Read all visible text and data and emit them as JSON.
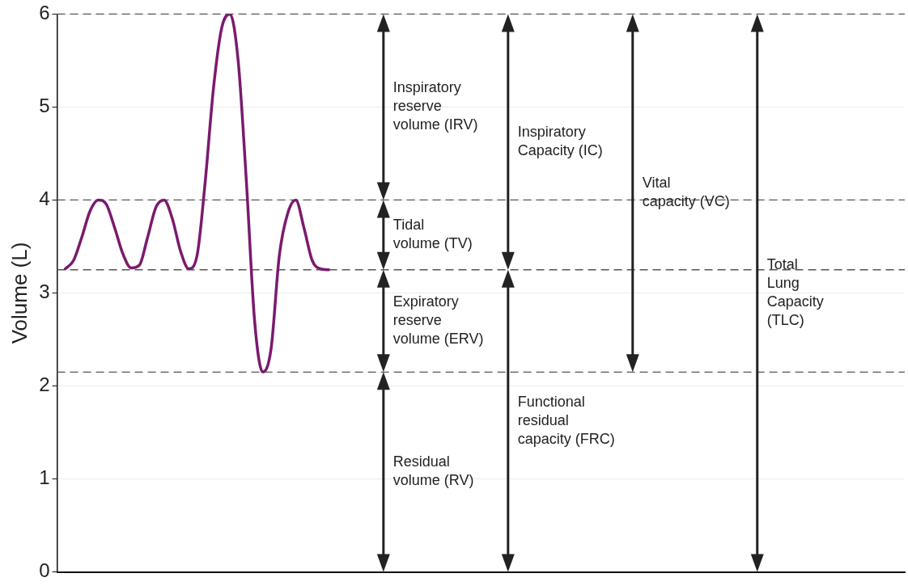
{
  "chart_data": {
    "type": "line",
    "ylabel": "Volume (L)",
    "categories": [
      null,
      null,
      null,
      null,
      null,
      null,
      null,
      null,
      null,
      null,
      null,
      null,
      null,
      null,
      null,
      null,
      null,
      null,
      null,
      null,
      null,
      null,
      null,
      null,
      null,
      null,
      null,
      null,
      null,
      null,
      null,
      null,
      null,
      null,
      null,
      null,
      null,
      null,
      null,
      null,
      null,
      null,
      null,
      null,
      null,
      null,
      null,
      null,
      null,
      null,
      null,
      null,
      null,
      null,
      null,
      null,
      null,
      null,
      null,
      null,
      null,
      null,
      null,
      null,
      null,
      null,
      null,
      null,
      null,
      null,
      null,
      null,
      null,
      null,
      null,
      null,
      null,
      null,
      null,
      null,
      null,
      null,
      null,
      null,
      null,
      null,
      null,
      null,
      null,
      null,
      null,
      null,
      null,
      null,
      null,
      null,
      null,
      null,
      null,
      null,
      null,
      null,
      null,
      null
    ],
    "series": [
      {
        "color": "#7b1a6e",
        "values": [
          null,
          3.26,
          3.35,
          3.6,
          3.88,
          4.0,
          3.95,
          3.7,
          3.42,
          3.27,
          3.3,
          3.6,
          3.92,
          4.0,
          3.8,
          3.45,
          3.26,
          3.4,
          4.2,
          5.2,
          5.85,
          6.0,
          5.5,
          4.2,
          2.7,
          2.15,
          2.4,
          3.4,
          3.85,
          4.0,
          3.7,
          3.35,
          3.26,
          3.25,
          null,
          null,
          null,
          null,
          null,
          null,
          null,
          null,
          null,
          null,
          null,
          null,
          null,
          null,
          null,
          null,
          null,
          null,
          null,
          null,
          null,
          null,
          null,
          null,
          null,
          null,
          null,
          null,
          null,
          null,
          null,
          null,
          null,
          null,
          null,
          null,
          null,
          null,
          null,
          null,
          null,
          null,
          null,
          null,
          null,
          null,
          null,
          null,
          null,
          null,
          null,
          null,
          null,
          null,
          null,
          null,
          null,
          null,
          null,
          null,
          null,
          null,
          null,
          null,
          null,
          null,
          null,
          null,
          null,
          null
        ]
      }
    ],
    "ylim": [
      0,
      6
    ],
    "yticks": [
      0,
      1,
      2,
      3,
      4,
      5,
      6
    ],
    "grid": "y",
    "tick_labels": "y",
    "marker": "none",
    "line_style": "solid",
    "legend": false,
    "ref_lines": [
      {
        "axis": "y",
        "value": 6,
        "line_style": "dashed"
      },
      {
        "axis": "y",
        "value": 4,
        "line_style": "dashed"
      },
      {
        "axis": "y",
        "value": 3.25,
        "line_style": "dashed"
      },
      {
        "axis": "y",
        "value": 2.15,
        "line_style": "dashed"
      }
    ],
    "annotations": [
      "Inspiratory\nreserve\nvolume (IRV)",
      "Tidal\nvolume (TV)",
      "Expiratory\nreserve\nvolume (ERV)",
      "Residual\nvolume (RV)",
      "Inspiratory\nCapacity (IC)",
      "Functional\nresidual\ncapacity (FRC)",
      "Vital\ncapacity (VC)",
      "Total\nLung\nCapacity\n(TLC)"
    ]
  }
}
